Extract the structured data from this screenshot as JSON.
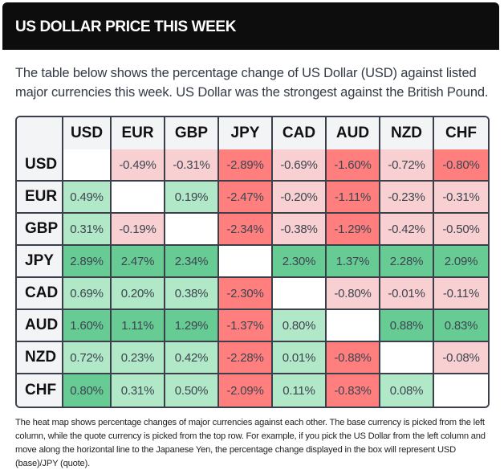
{
  "header": {
    "title": "US DOLLAR PRICE THIS WEEK"
  },
  "intro": {
    "text": "The table below shows the percentage change of US Dollar (USD) against listed major currencies this week. US Dollar was the strongest against the British Pound."
  },
  "heatmap": {
    "columns": [
      "USD",
      "EUR",
      "GBP",
      "JPY",
      "CAD",
      "AUD",
      "NZD",
      "CHF"
    ],
    "colors": {
      "strong_positive": "#66cc94",
      "weak_positive": "#b0e8c8",
      "strong_negative": "#ff7f7f",
      "weak_negative": "#f9d0d2",
      "empty": "#ffffff",
      "header": "#f3f4f6",
      "border": "#3a3f4a"
    },
    "rows": [
      {
        "base": "USD",
        "cells": [
          {
            "value": "",
            "level": "empty"
          },
          {
            "value": "-0.49%",
            "level": "weak_negative"
          },
          {
            "value": "-0.31%",
            "level": "weak_negative"
          },
          {
            "value": "-2.89%",
            "level": "strong_negative"
          },
          {
            "value": "-0.69%",
            "level": "weak_negative"
          },
          {
            "value": "-1.60%",
            "level": "strong_negative"
          },
          {
            "value": "-0.72%",
            "level": "weak_negative"
          },
          {
            "value": "-0.80%",
            "level": "strong_negative"
          }
        ]
      },
      {
        "base": "EUR",
        "cells": [
          {
            "value": "0.49%",
            "level": "weak_positive"
          },
          {
            "value": "",
            "level": "empty"
          },
          {
            "value": "0.19%",
            "level": "weak_positive"
          },
          {
            "value": "-2.47%",
            "level": "strong_negative"
          },
          {
            "value": "-0.20%",
            "level": "weak_negative"
          },
          {
            "value": "-1.11%",
            "level": "strong_negative"
          },
          {
            "value": "-0.23%",
            "level": "weak_negative"
          },
          {
            "value": "-0.31%",
            "level": "weak_negative"
          }
        ]
      },
      {
        "base": "GBP",
        "cells": [
          {
            "value": "0.31%",
            "level": "weak_positive"
          },
          {
            "value": "-0.19%",
            "level": "weak_negative"
          },
          {
            "value": "",
            "level": "empty"
          },
          {
            "value": "-2.34%",
            "level": "strong_negative"
          },
          {
            "value": "-0.38%",
            "level": "weak_negative"
          },
          {
            "value": "-1.29%",
            "level": "strong_negative"
          },
          {
            "value": "-0.42%",
            "level": "weak_negative"
          },
          {
            "value": "-0.50%",
            "level": "weak_negative"
          }
        ]
      },
      {
        "base": "JPY",
        "cells": [
          {
            "value": "2.89%",
            "level": "strong_positive"
          },
          {
            "value": "2.47%",
            "level": "strong_positive"
          },
          {
            "value": "2.34%",
            "level": "strong_positive"
          },
          {
            "value": "",
            "level": "empty"
          },
          {
            "value": "2.30%",
            "level": "strong_positive"
          },
          {
            "value": "1.37%",
            "level": "strong_positive"
          },
          {
            "value": "2.28%",
            "level": "strong_positive"
          },
          {
            "value": "2.09%",
            "level": "strong_positive"
          }
        ]
      },
      {
        "base": "CAD",
        "cells": [
          {
            "value": "0.69%",
            "level": "weak_positive"
          },
          {
            "value": "0.20%",
            "level": "weak_positive"
          },
          {
            "value": "0.38%",
            "level": "weak_positive"
          },
          {
            "value": "-2.30%",
            "level": "strong_negative"
          },
          {
            "value": "",
            "level": "empty"
          },
          {
            "value": "-0.80%",
            "level": "weak_negative"
          },
          {
            "value": "-0.01%",
            "level": "weak_negative"
          },
          {
            "value": "-0.11%",
            "level": "weak_negative"
          }
        ]
      },
      {
        "base": "AUD",
        "cells": [
          {
            "value": "1.60%",
            "level": "strong_positive"
          },
          {
            "value": "1.11%",
            "level": "strong_positive"
          },
          {
            "value": "1.29%",
            "level": "strong_positive"
          },
          {
            "value": "-1.37%",
            "level": "strong_negative"
          },
          {
            "value": "0.80%",
            "level": "weak_positive"
          },
          {
            "value": "",
            "level": "empty"
          },
          {
            "value": "0.88%",
            "level": "strong_positive"
          },
          {
            "value": "0.83%",
            "level": "strong_positive"
          }
        ]
      },
      {
        "base": "NZD",
        "cells": [
          {
            "value": "0.72%",
            "level": "weak_positive"
          },
          {
            "value": "0.23%",
            "level": "weak_positive"
          },
          {
            "value": "0.42%",
            "level": "weak_positive"
          },
          {
            "value": "-2.28%",
            "level": "strong_negative"
          },
          {
            "value": "0.01%",
            "level": "weak_positive"
          },
          {
            "value": "-0.88%",
            "level": "strong_negative"
          },
          {
            "value": "",
            "level": "empty"
          },
          {
            "value": "-0.08%",
            "level": "weak_negative"
          }
        ]
      },
      {
        "base": "CHF",
        "cells": [
          {
            "value": "0.80%",
            "level": "strong_positive"
          },
          {
            "value": "0.31%",
            "level": "weak_positive"
          },
          {
            "value": "0.50%",
            "level": "weak_positive"
          },
          {
            "value": "-2.09%",
            "level": "strong_negative"
          },
          {
            "value": "0.11%",
            "level": "weak_positive"
          },
          {
            "value": "-0.83%",
            "level": "strong_negative"
          },
          {
            "value": "0.08%",
            "level": "weak_positive"
          },
          {
            "value": "",
            "level": "empty"
          }
        ]
      }
    ]
  },
  "footer": {
    "text": "The heat map shows percentage changes of major currencies against each other. The base currency is picked from the left column, while the quote currency is picked from the top row. For example, if you pick the US Dollar from the left column and move along the horizontal line to the Japanese Yen, the percentage change displayed in the box will represent USD (base)/JPY (quote)."
  }
}
